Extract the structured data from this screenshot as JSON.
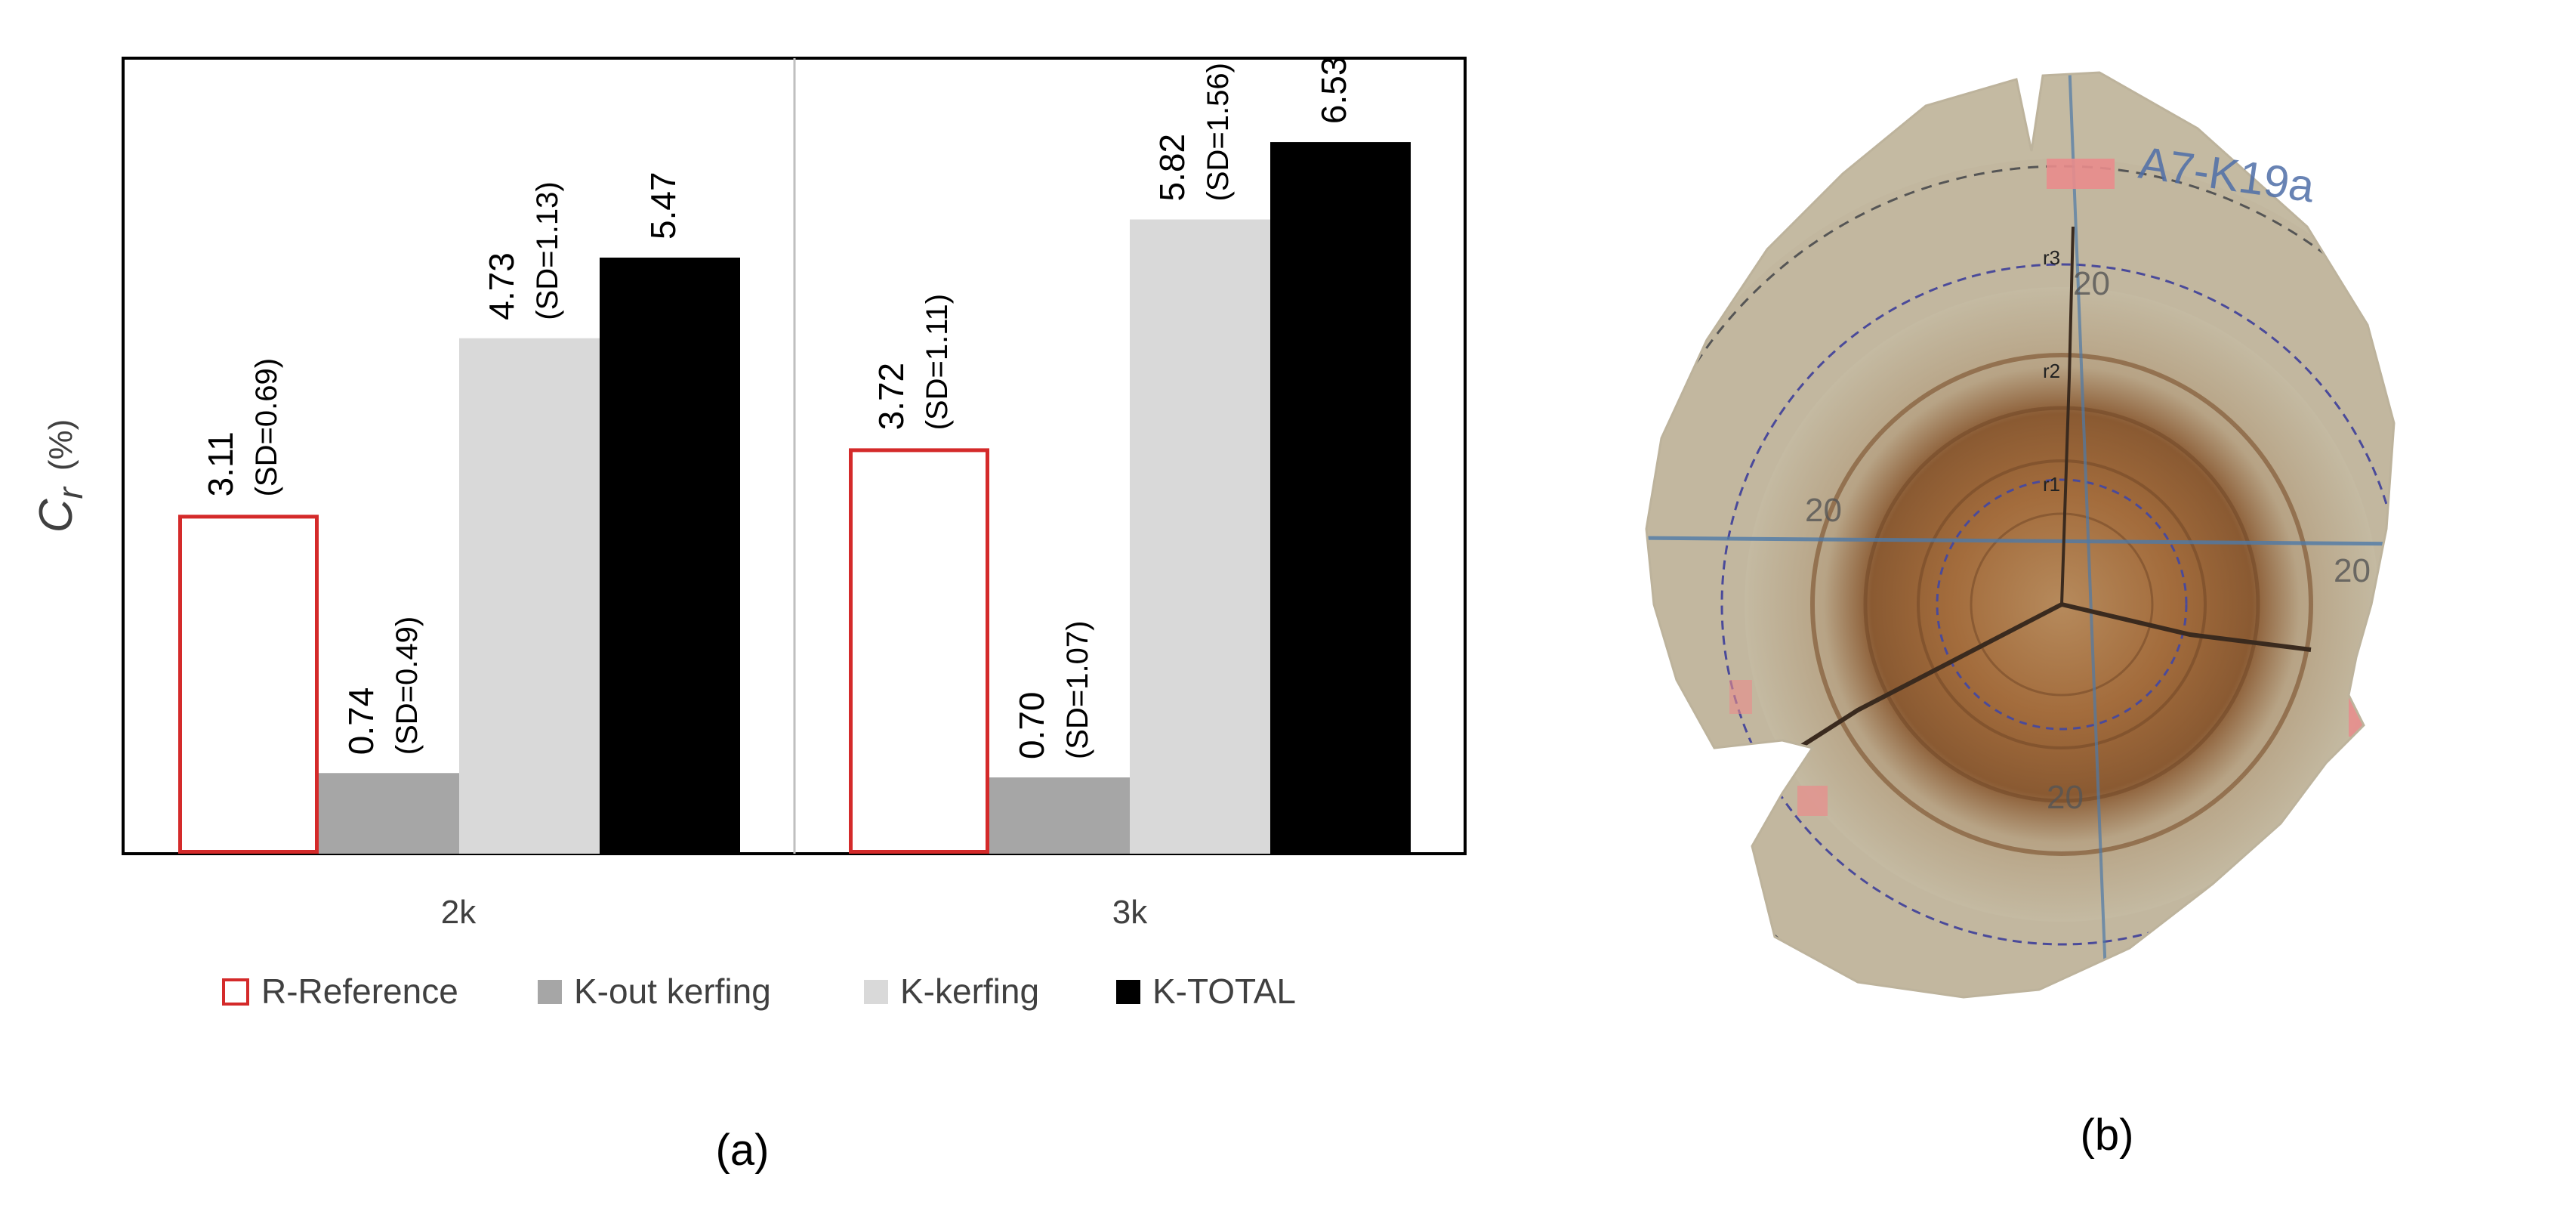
{
  "panel_a": {
    "caption": "(a)",
    "ylabel_symbol": "C",
    "ylabel_sub": "r",
    "ylabel_unit": "(%)",
    "legend": [
      {
        "label": "R-Reference",
        "style": "outline"
      },
      {
        "label": "K-out kerfing",
        "style": "fill"
      },
      {
        "label": "K-kerfing",
        "style": "fill"
      },
      {
        "label": "K-TOTAL",
        "style": "fill"
      }
    ]
  },
  "panel_b": {
    "caption": "(b)",
    "specimen_labels": [
      "A7-K19a",
      "20",
      "20",
      "20",
      "20",
      "r1",
      "r2",
      "r3"
    ]
  },
  "colors": {
    "reference": "#d42a2a",
    "k_out_kerfing": "#a6a6a6",
    "k_kerfing": "#d9d9d9",
    "k_total": "#000000",
    "axis": "#000000",
    "text": "#404040",
    "divider": "#bfbfbf"
  },
  "chart_data": {
    "type": "bar",
    "categories": [
      "2k",
      "3k"
    ],
    "grid": false,
    "legend_position": "bottom",
    "ylim": [
      0,
      7.3
    ],
    "series": [
      {
        "name": "R-Reference",
        "values": [
          3.11,
          3.72
        ],
        "sd_labels": [
          "",
          ""
        ],
        "value_labels": [
          "3.11",
          "3.72"
        ],
        "sd_text": [
          "(SD=0.69)",
          "(SD=1.11)"
        ]
      },
      {
        "name": "K-out kerfing",
        "values": [
          0.74,
          0.7
        ],
        "value_labels": [
          "0.74",
          "0.70"
        ],
        "sd_text": [
          "(SD=0.49)",
          "(SD=1.07)"
        ]
      },
      {
        "name": "K-kerfing",
        "values": [
          4.73,
          5.82
        ],
        "value_labels": [
          "4.73",
          "5.82"
        ],
        "sd_text": [
          "(SD=1.13)",
          "(SD=1.56)"
        ]
      },
      {
        "name": "K-TOTAL",
        "values": [
          5.47,
          6.53
        ],
        "value_labels": [
          "5.47",
          "6.53"
        ],
        "sd_text": [
          "",
          ""
        ]
      }
    ]
  }
}
